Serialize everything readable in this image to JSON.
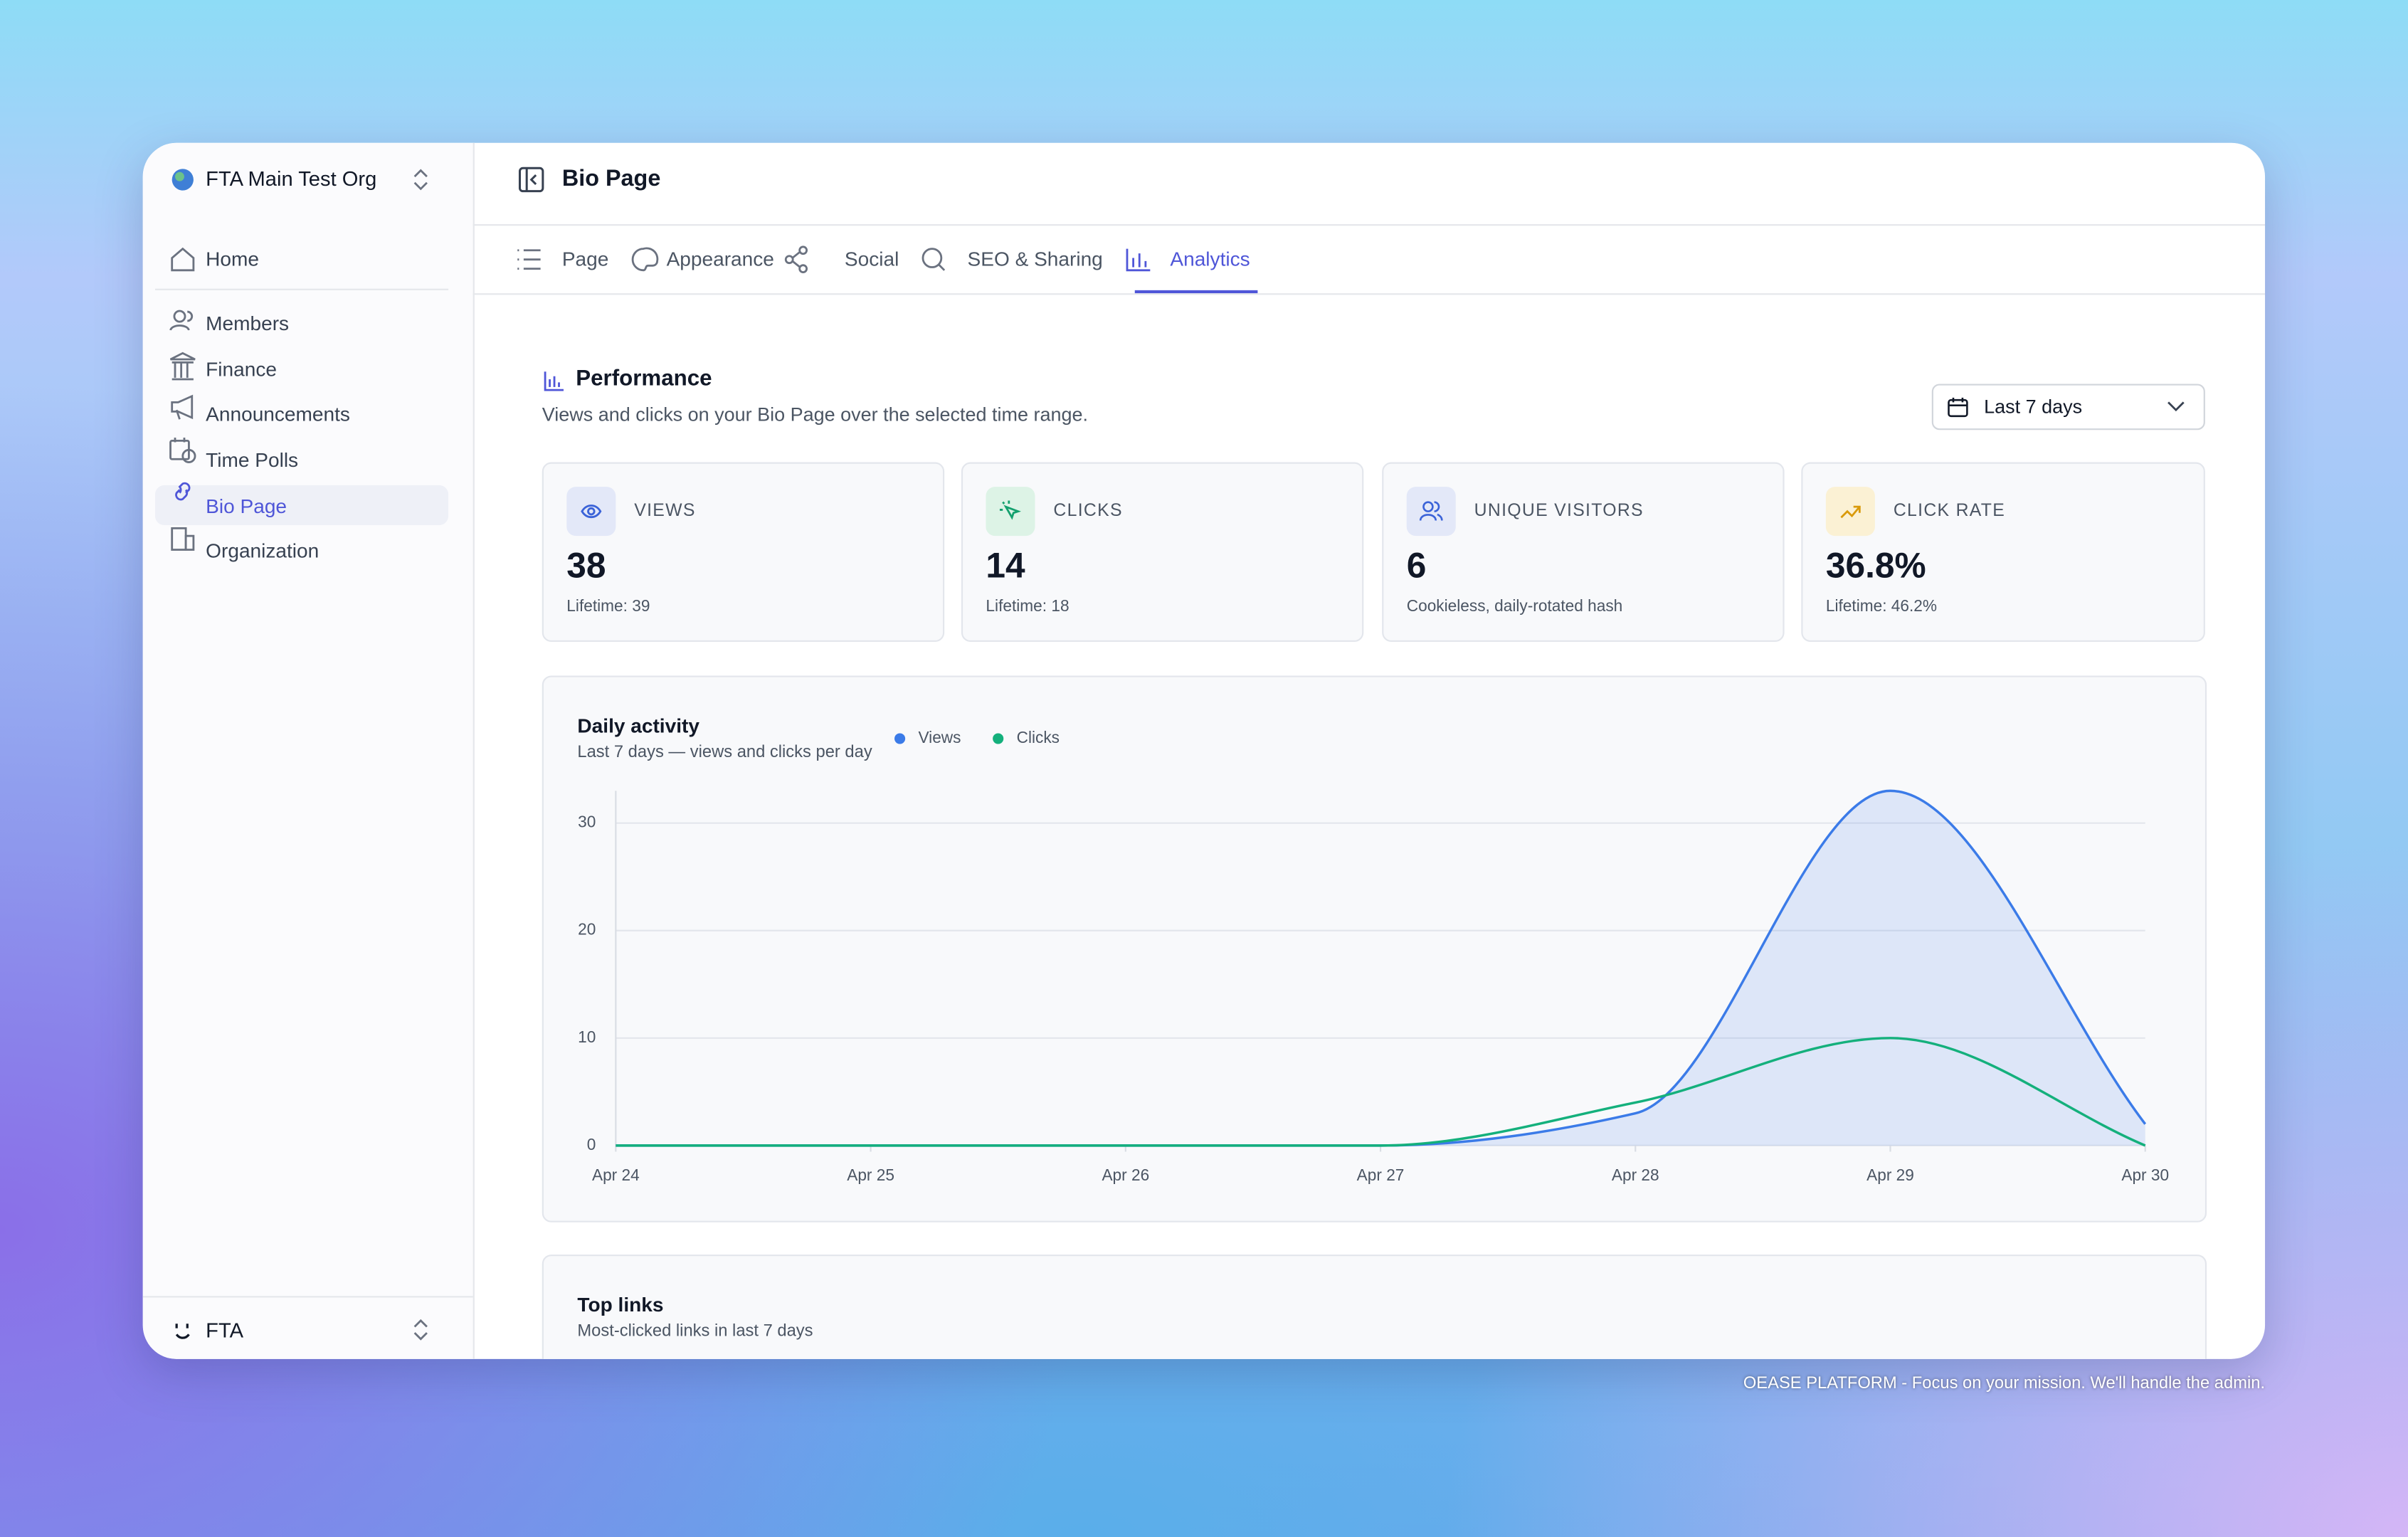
{
  "sidebar": {
    "org": "FTA Main Test Org",
    "nav": [
      "Home",
      "Members",
      "Finance",
      "Announcements",
      "Time Polls",
      "Bio Page",
      "Organization"
    ],
    "user": "FTA"
  },
  "header": {
    "title": "Bio Page"
  },
  "tabs": [
    "Page",
    "Appearance",
    "Social",
    "SEO & Sharing",
    "Analytics"
  ],
  "performance": {
    "title": "Performance",
    "subtitle": "Views and clicks on your Bio Page over the selected time range.",
    "range": "Last 7 days"
  },
  "stats": [
    {
      "label": "VIEWS",
      "value": 38,
      "note": "Lifetime: 39"
    },
    {
      "label": "CLICKS",
      "value": 14,
      "note": "Lifetime: 18"
    },
    {
      "label": "UNIQUE VISITORS",
      "value": 6,
      "note": "Cookieless, daily-rotated hash"
    },
    {
      "label": "CLICK RATE",
      "value": "36.8%",
      "note": "Lifetime: 46.2%"
    }
  ],
  "chart_data": {
    "type": "line",
    "title": "Daily activity",
    "subtitle": "Last 7 days — views and clicks per day",
    "categories": [
      "Apr 24",
      "Apr 25",
      "Apr 26",
      "Apr 27",
      "Apr 28",
      "Apr 29",
      "Apr 30"
    ],
    "series": [
      {
        "name": "Views",
        "color": "#3b7be8",
        "values": [
          0,
          0,
          0,
          0,
          3,
          33,
          2
        ]
      },
      {
        "name": "Clicks",
        "color": "#14b07c",
        "values": [
          0,
          0,
          0,
          0,
          4,
          10,
          0
        ]
      }
    ],
    "ylim": [
      0,
      33
    ],
    "yticks": [
      0,
      10,
      20,
      30
    ],
    "grid": true
  },
  "top_links": {
    "title": "Top links",
    "subtitle": "Most-clicked links in last 7 days"
  },
  "footer": "OEASE PLATFORM - Focus on your mission. We'll handle the admin."
}
